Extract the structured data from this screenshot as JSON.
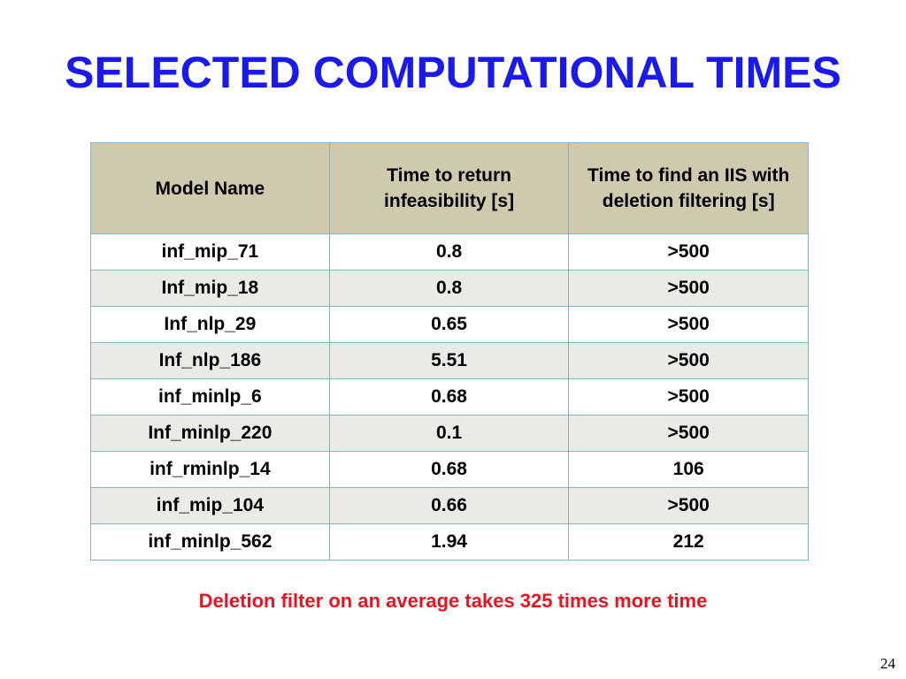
{
  "title": "SELECTED COMPUTATIONAL TIMES",
  "table": {
    "headers": [
      "Model Name",
      "Time to return infeasibility [s]",
      "Time to find an IIS with deletion filtering [s]"
    ],
    "rows": [
      [
        "inf_mip_71",
        "0.8",
        ">500"
      ],
      [
        "Inf_mip_18",
        "0.8",
        ">500"
      ],
      [
        "Inf_nlp_29",
        "0.65",
        ">500"
      ],
      [
        "Inf_nlp_186",
        "5.51",
        ">500"
      ],
      [
        "inf_minlp_6",
        "0.68",
        ">500"
      ],
      [
        "Inf_minlp_220",
        "0.1",
        ">500"
      ],
      [
        "inf_rminlp_14",
        "0.68",
        "106"
      ],
      [
        "inf_mip_104",
        "0.66",
        ">500"
      ],
      [
        "inf_minlp_562",
        "1.94",
        "212"
      ]
    ]
  },
  "note": "Deletion filter on an average takes 325 times more time",
  "page_number": "24",
  "colors": {
    "title": "#1a1aee",
    "header_bg": "#cfc9ad",
    "note": "#e8141e",
    "border": "#7fb3c8"
  }
}
